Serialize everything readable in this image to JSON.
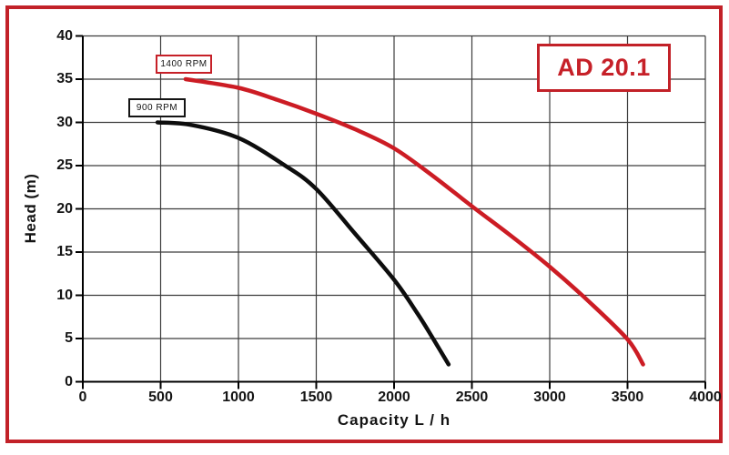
{
  "page": {
    "frame_color": "#c22128",
    "background": "#ffffff"
  },
  "badge": {
    "label": "AD 20.1",
    "border_color": "#c22128",
    "text_color": "#c62028"
  },
  "annotations": {
    "rpm_1400": {
      "label": "1400 RPM",
      "border_color": "#c62028"
    },
    "rpm_900": {
      "label": "900 RPM",
      "border_color": "#141414"
    }
  },
  "chart_data": {
    "type": "line",
    "title": "",
    "xlabel": "Capacity L / h",
    "ylabel": "Head (m)",
    "xlim": [
      0,
      4000
    ],
    "ylim": [
      0,
      40
    ],
    "x_ticks": [
      0,
      500,
      1000,
      1500,
      2000,
      2500,
      3000,
      3500,
      4000
    ],
    "y_ticks": [
      0,
      5,
      10,
      15,
      20,
      25,
      30,
      35,
      40
    ],
    "grid": true,
    "grid_color": "#3c3c3c",
    "axis_color": "#000000",
    "legend_position": "annotation-boxes-near-curve-starts",
    "series": [
      {
        "name": "1400 RPM",
        "color": "#cc1c24",
        "points": [
          [
            660,
            35
          ],
          [
            1000,
            34
          ],
          [
            1250,
            32.6
          ],
          [
            1500,
            31
          ],
          [
            1750,
            29.2
          ],
          [
            2000,
            27
          ],
          [
            2250,
            23.8
          ],
          [
            2500,
            20.3
          ],
          [
            2750,
            16.9
          ],
          [
            3000,
            13.3
          ],
          [
            3250,
            9.3
          ],
          [
            3500,
            4.9
          ],
          [
            3600,
            2
          ]
        ]
      },
      {
        "name": "900 RPM",
        "color": "#0d0d0d",
        "points": [
          [
            480,
            30
          ],
          [
            700,
            29.7
          ],
          [
            1000,
            28.2
          ],
          [
            1300,
            25
          ],
          [
            1500,
            22.3
          ],
          [
            1750,
            17.1
          ],
          [
            2000,
            11.8
          ],
          [
            2150,
            7.9
          ],
          [
            2250,
            5
          ],
          [
            2350,
            2
          ]
        ]
      }
    ]
  }
}
